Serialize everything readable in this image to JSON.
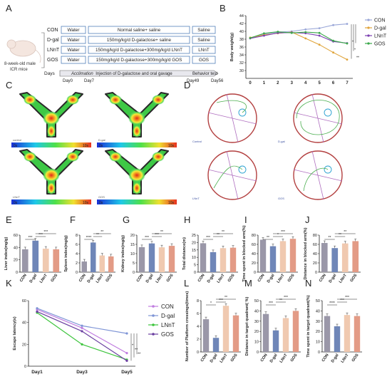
{
  "panels": [
    "A",
    "B",
    "C",
    "D",
    "E",
    "F",
    "G",
    "H",
    "I",
    "J",
    "K",
    "L",
    "M",
    "N"
  ],
  "colors": {
    "CON": "#9aa7d8",
    "D-gal": "#e0a43a",
    "LNnT": "#7a3fb0",
    "GOS": "#3aa84a",
    "bar_con": "#9a97a8",
    "bar_dgal": "#6f86b8",
    "bar_lnnt": "#f0c9b0",
    "bar_gos": "#e39b86",
    "k_con": "#c07de0",
    "k_dgal": "#7f95d6",
    "k_lnnt": "#3cc43c",
    "k_gos": "#6a3fa0"
  },
  "panelA": {
    "mouse_label": [
      "8-week-old male",
      "ICR mice"
    ],
    "rows": [
      {
        "group": "CON",
        "water": "Water",
        "treat": "Normal saline+ saline",
        "test": "Saline"
      },
      {
        "group": "D-gal",
        "water": "Water",
        "treat": "150mg/kg/d D-galactose+ saline",
        "test": "Saline"
      },
      {
        "group": "LNnT",
        "water": "Water",
        "treat": "150mg/kg/d D-galactose+300mg/kg/d LNnT",
        "test": "LNnT"
      },
      {
        "group": "GOS",
        "water": "Water",
        "treat": "150mg/kg/d D-galactose+300mg/kg/d GOS",
        "test": "GOS"
      }
    ],
    "timeline_label": "Days",
    "phases": [
      "Acclimation",
      "Injection of D-galactose and oral gavage",
      "Behavior test"
    ],
    "days": [
      "Day0",
      "Day7",
      "Day49",
      "Day56"
    ]
  },
  "panelC": {
    "labels": [
      "control",
      "D-gal",
      "LNnT",
      "GOS"
    ],
    "scale_min": "0s",
    "scale_max": "10s"
  },
  "panelD": {
    "labels": [
      "Control",
      "D-gal",
      "LNnT",
      "GOS"
    ]
  },
  "chart_data": [
    {
      "id": "B",
      "type": "line",
      "ylabel": "Body weight(g)",
      "x": [
        0,
        1,
        2,
        3,
        4,
        5,
        6,
        7
      ],
      "ylim": [
        28,
        44
      ],
      "yticks": [
        30,
        32,
        34,
        36,
        38,
        40,
        42,
        44
      ],
      "series": [
        {
          "name": "CON",
          "values": [
            38.3,
            39.3,
            39.8,
            40.0,
            40.5,
            40.8,
            41.6,
            41.9
          ]
        },
        {
          "name": "D-gal",
          "values": [
            38.4,
            39.1,
            39.5,
            39.8,
            38.2,
            36.6,
            34.6,
            32.8
          ]
        },
        {
          "name": "LNnT",
          "values": [
            38.2,
            38.9,
            39.6,
            39.7,
            39.5,
            38.9,
            37.4,
            37.0
          ]
        },
        {
          "name": "GOS",
          "values": [
            38.3,
            39.5,
            39.9,
            39.6,
            39.8,
            39.6,
            37.6,
            36.9
          ]
        }
      ],
      "annotations": [
        "*",
        "*",
        "**"
      ]
    },
    {
      "id": "E",
      "type": "bar",
      "ylabel": "Liver index(mg/g)",
      "categories": [
        "CON",
        "D-gal",
        "LNnT",
        "GOS"
      ],
      "values": [
        37,
        51,
        38,
        37
      ],
      "ylim": [
        0,
        60
      ],
      "yticks": [
        0,
        20,
        40,
        60
      ],
      "annotations": [
        "***",
        "***",
        "***"
      ]
    },
    {
      "id": "F",
      "type": "bar",
      "ylabel": "Spleen index(mg/g)",
      "categories": [
        "CON",
        "D-gal",
        "LNnT",
        "GOS"
      ],
      "values": [
        2.3,
        6.4,
        3.6,
        3.4
      ],
      "ylim": [
        0,
        8
      ],
      "yticks": [
        0,
        2,
        4,
        6,
        8
      ],
      "annotations": [
        "****",
        "**",
        "**"
      ]
    },
    {
      "id": "G",
      "type": "bar",
      "ylabel": "Kidney index(mg/g)",
      "categories": [
        "CON",
        "D-gal",
        "LNnT",
        "GOS"
      ],
      "values": [
        13.5,
        15.5,
        13.4,
        14.2
      ],
      "ylim": [
        0,
        20
      ],
      "yticks": [
        0,
        5,
        10,
        15,
        20
      ],
      "annotations": [
        "***",
        "***",
        "**"
      ]
    },
    {
      "id": "H",
      "type": "bar",
      "ylabel": "Total distance(m)",
      "categories": [
        "CON",
        "D-gal",
        "LNnT",
        "GOS"
      ],
      "values": [
        19.5,
        13.5,
        16.2,
        16.5
      ],
      "ylim": [
        0,
        25
      ],
      "yticks": [
        0,
        5,
        10,
        15,
        20,
        25
      ],
      "annotations": [
        "***",
        "**",
        "**"
      ]
    },
    {
      "id": "I",
      "type": "bar",
      "ylabel": "Time spent in blocked arm(%)",
      "categories": [
        "CON",
        "D-gal",
        "LNnT",
        "GOS"
      ],
      "values": [
        70,
        56,
        67,
        72
      ],
      "ylim": [
        0,
        80
      ],
      "yticks": [
        0,
        20,
        40,
        60,
        80
      ],
      "annotations": [
        "**",
        "*",
        "***"
      ]
    },
    {
      "id": "J",
      "type": "bar",
      "ylabel": "Distance in blocked arm(%)",
      "categories": [
        "CON",
        "D-gal",
        "LNnT",
        "GOS"
      ],
      "values": [
        63,
        52,
        62,
        67
      ],
      "ylim": [
        0,
        80
      ],
      "yticks": [
        0,
        20,
        40,
        60,
        80
      ],
      "annotations": [
        "**",
        "**",
        "**"
      ]
    },
    {
      "id": "K",
      "type": "line",
      "ylabel": "Escape latency(s)",
      "categories": [
        "Day1",
        "Day3",
        "Day5"
      ],
      "ylim": [
        0,
        60
      ],
      "yticks": [
        0,
        20,
        40,
        60
      ],
      "series": [
        {
          "name": "CON",
          "values": [
            52,
            35,
            12
          ]
        },
        {
          "name": "D-gal",
          "values": [
            53,
            37,
            30
          ]
        },
        {
          "name": "LNnT",
          "values": [
            49,
            20,
            6
          ]
        },
        {
          "name": "GOS",
          "values": [
            50,
            32,
            5
          ]
        }
      ],
      "annotations": [
        "*",
        "**",
        "**"
      ]
    },
    {
      "id": "L",
      "type": "bar",
      "ylabel": "Number of Platform crossings(times)",
      "categories": [
        "CON",
        "D-gal",
        "LNnT",
        "GOS"
      ],
      "values": [
        5.1,
        2.2,
        7.2,
        5.7
      ],
      "ylim": [
        0,
        8
      ],
      "yticks": [
        0,
        2,
        4,
        6,
        8
      ],
      "annotations": [
        "*",
        "***",
        "**"
      ]
    },
    {
      "id": "M",
      "type": "bar",
      "ylabel": "Distance in target quadrant( %)",
      "categories": [
        "CON",
        "D-gal",
        "LNnT",
        "GOS"
      ],
      "values": [
        37,
        21,
        33,
        40
      ],
      "ylim": [
        0,
        50
      ],
      "yticks": [
        0,
        10,
        20,
        30,
        40,
        50
      ],
      "annotations": [
        "***",
        "**",
        "***"
      ]
    },
    {
      "id": "N",
      "type": "bar",
      "ylabel": "Time spent in target quadrant(%)",
      "categories": [
        "CON",
        "D-gal",
        "LNnT",
        "GOS"
      ],
      "values": [
        35,
        25,
        36,
        35
      ],
      "ylim": [
        0,
        50
      ],
      "yticks": [
        0,
        10,
        20,
        30,
        40,
        50
      ],
      "annotations": [
        "****",
        "***",
        "***"
      ]
    }
  ]
}
